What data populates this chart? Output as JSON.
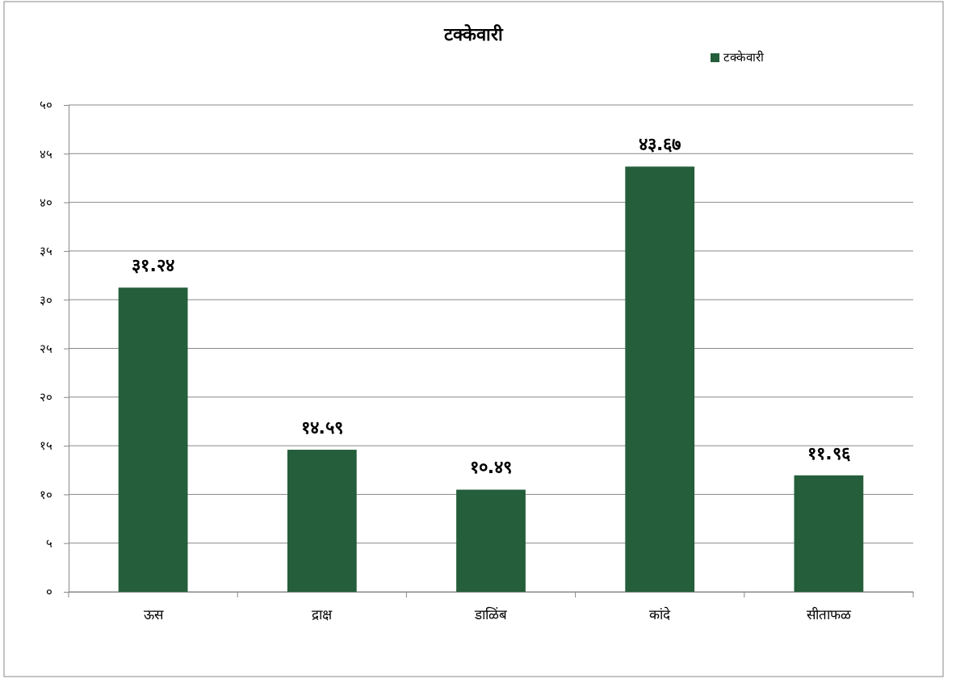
{
  "chart_data": {
    "type": "bar",
    "title": "टक्केवारी",
    "categories": [
      "ऊस",
      "द्राक्ष",
      "डाळिंब",
      "कांदे",
      "सीताफळ"
    ],
    "series": [
      {
        "name": "टक्केवारी",
        "color": "#245e3a",
        "values": [
          31.24,
          14.59,
          10.49,
          43.67,
          11.96
        ],
        "value_labels": [
          "३१.२४",
          "१४.५९",
          "१०.४९",
          "४३.६७",
          "११.९६"
        ]
      }
    ],
    "ylim": [
      0,
      50
    ],
    "yticks": [
      {
        "value": 0,
        "label": "०"
      },
      {
        "value": 5,
        "label": "५"
      },
      {
        "value": 10,
        "label": "१०"
      },
      {
        "value": 15,
        "label": "१५"
      },
      {
        "value": 20,
        "label": "२०"
      },
      {
        "value": 25,
        "label": "२५"
      },
      {
        "value": 30,
        "label": "३०"
      },
      {
        "value": 35,
        "label": "३५"
      },
      {
        "value": 40,
        "label": "४०"
      },
      {
        "value": 45,
        "label": "४५"
      },
      {
        "value": 50,
        "label": "५०"
      }
    ],
    "grid": "y",
    "legend": "top right"
  }
}
